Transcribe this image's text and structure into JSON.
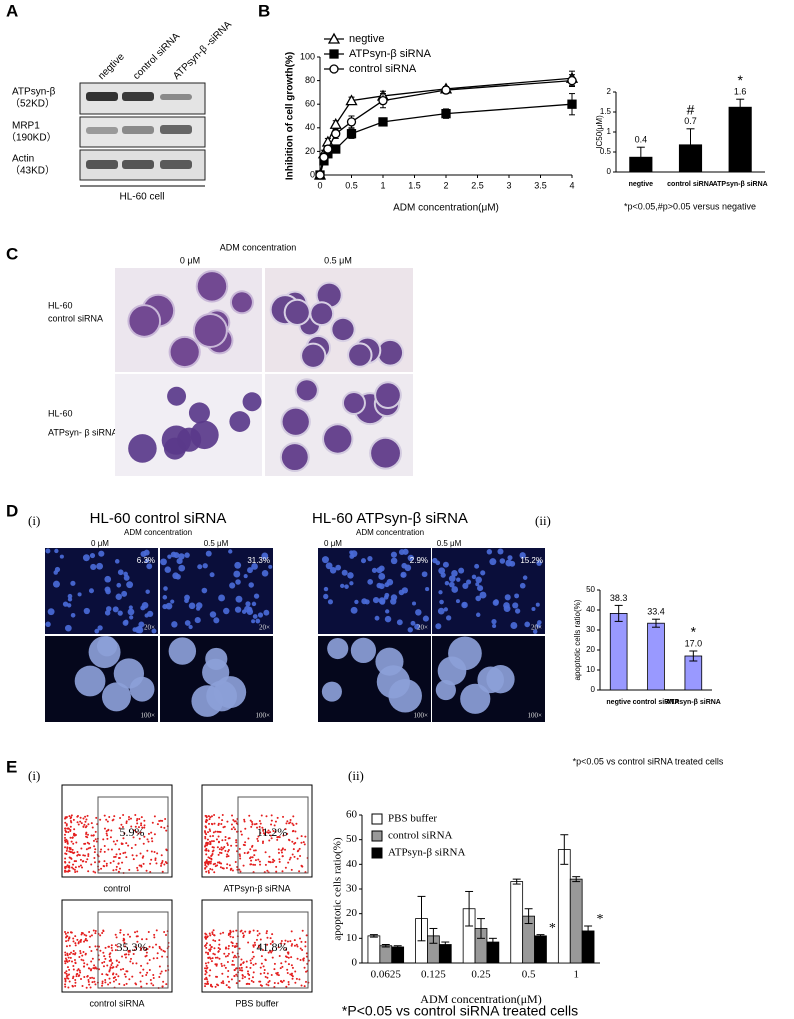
{
  "panel_labels": [
    "A",
    "B",
    "C",
    "D",
    "E"
  ],
  "blot": {
    "lanes": [
      "negtive",
      "control siRNA",
      "ATPsyn-β -siRNA"
    ],
    "rows": [
      [
        "ATPsyn-β",
        "（52KD）"
      ],
      [
        "MRP1",
        "（190KD）"
      ],
      [
        "Actin",
        "（43KD）"
      ]
    ],
    "caption": "HL-60 cell"
  },
  "micrographs": {
    "title": "ADM concentration",
    "columns": [
      "0 μM",
      "0.5 μM"
    ],
    "rows": [
      [
        "HL-60",
        "control siRNA"
      ],
      [
        "HL-60",
        "ATPsyn- β siRNA"
      ]
    ]
  },
  "fluorescence": {
    "sub_label": "(i)",
    "magnifications": [
      "20×",
      "100×"
    ],
    "groups": [
      {
        "title": "HL-60 control siRNA",
        "axis_title": "ADM concentration",
        "columns": [
          "0 μM",
          "0.5 μM"
        ],
        "percents": [
          "6.3%",
          "31.3%"
        ]
      },
      {
        "title": "HL-60 ATPsyn-β siRNA",
        "axis_title": "ADM concentration",
        "columns": [
          "0 μM",
          "0.5 μM"
        ],
        "percents": [
          "2.9%",
          "15.2%"
        ]
      }
    ]
  },
  "flow": {
    "sub_label": "(i)",
    "plots": [
      {
        "label": "control",
        "percent": "5.9%"
      },
      {
        "label": "ATPsyn-β siRNA",
        "percent": "11.2%"
      },
      {
        "label": "control siRNA",
        "percent": "35.3%"
      },
      {
        "label": "PBS buffer",
        "percent": "41.8%"
      }
    ]
  },
  "chart_data": [
    {
      "type": "line",
      "y_label": "Inhibition of cell growth(%)",
      "x_label": "ADM concentration(μM)",
      "x": [
        0,
        0.0625,
        0.125,
        0.25,
        0.5,
        1,
        2,
        4
      ],
      "xlim": [
        0,
        4
      ],
      "xticks": [
        0,
        0.5,
        1,
        1.5,
        2,
        2.5,
        3,
        3.5,
        4
      ],
      "ylim": [
        0,
        100
      ],
      "yticks": [
        0,
        20,
        40,
        60,
        80,
        100
      ],
      "legend": "upper left",
      "series": [
        {
          "name": "negtive",
          "color": "#000000",
          "marker": "triangle",
          "marker_fill": "#ffffff",
          "values": [
            0,
            18,
            28,
            43,
            63,
            67,
            73,
            82
          ],
          "errors": [
            0,
            3,
            3,
            3,
            3,
            4,
            2,
            6
          ]
        },
        {
          "name": "ATPsyn-β siRNA",
          "color": "#000000",
          "marker": "square",
          "marker_fill": "#000000",
          "values": [
            0,
            12,
            18,
            22,
            35,
            45,
            52,
            60
          ],
          "errors": [
            0,
            3,
            3,
            3,
            4,
            2,
            4,
            9
          ]
        },
        {
          "name": "control siRNA",
          "color": "#000000",
          "marker": "circle",
          "marker_fill": "#ffffff",
          "values": [
            0,
            15,
            22,
            35,
            45,
            63,
            72,
            80
          ],
          "errors": [
            0,
            3,
            3,
            4,
            5,
            6,
            3,
            5
          ]
        }
      ]
    },
    {
      "type": "bar",
      "y_label": "IC50(μM)",
      "note": "*p<0.05,#p>0.05 versus negative",
      "categories": [
        "negtive",
        "control siRNA",
        "ATPsyn-β siRNA"
      ],
      "values": [
        0.37,
        0.68,
        1.62
      ],
      "value_labels": [
        "0.4",
        "0.7",
        "1.6"
      ],
      "errors": [
        0.25,
        0.4,
        0.2
      ],
      "annotations": [
        null,
        "#",
        "*"
      ],
      "color": "#000000",
      "ylim": [
        0,
        2
      ],
      "yticks": [
        0,
        0.5,
        1,
        1.5,
        2
      ]
    },
    {
      "type": "bar",
      "sub_label": "(ii)",
      "y_label": "apoptotic cells ratio(%)",
      "note": "*p<0.05 vs control siRNA treated cells",
      "categories": [
        "negtive",
        "control siRNA",
        "ATPsyn-β siRNA"
      ],
      "values": [
        38.3,
        33.4,
        17.0
      ],
      "value_labels": [
        "38.3",
        "33.4",
        "17.0"
      ],
      "errors": [
        4,
        2,
        2.5
      ],
      "annotations": [
        null,
        null,
        "*"
      ],
      "color": "#9999ff",
      "ylim": [
        0,
        50
      ],
      "yticks": [
        0,
        10,
        20,
        30,
        40,
        50
      ]
    },
    {
      "type": "bar",
      "sub_label": "(ii)",
      "y_label": "apoptotic cells ratio(%)",
      "x_label": "ADM concentration(μM)",
      "note": "*P<0.05 vs control siRNA treated cells",
      "categories": [
        "0.0625",
        "0.125",
        "0.25",
        "0.5",
        "1"
      ],
      "legend": "upper left",
      "ylim": [
        0,
        60
      ],
      "yticks": [
        0,
        10,
        20,
        30,
        40,
        50,
        60
      ],
      "series": [
        {
          "name": "PBS buffer",
          "color": "#ffffff",
          "values": [
            11,
            18,
            22,
            33,
            46
          ],
          "errors": [
            0.5,
            9,
            7,
            1,
            6
          ],
          "annotations": [
            null,
            null,
            null,
            null,
            null
          ]
        },
        {
          "name": "control siRNA",
          "color": "#999999",
          "values": [
            7,
            11,
            14,
            19,
            34
          ],
          "errors": [
            0.5,
            3,
            4,
            3,
            1
          ],
          "annotations": [
            null,
            null,
            null,
            null,
            null
          ]
        },
        {
          "name": "ATPsyn-β siRNA",
          "color": "#000000",
          "values": [
            6.5,
            7.5,
            8.5,
            11,
            13
          ],
          "errors": [
            0.5,
            1,
            1.5,
            0.5,
            2
          ],
          "annotations": [
            null,
            null,
            null,
            "*",
            "*"
          ]
        }
      ]
    }
  ]
}
